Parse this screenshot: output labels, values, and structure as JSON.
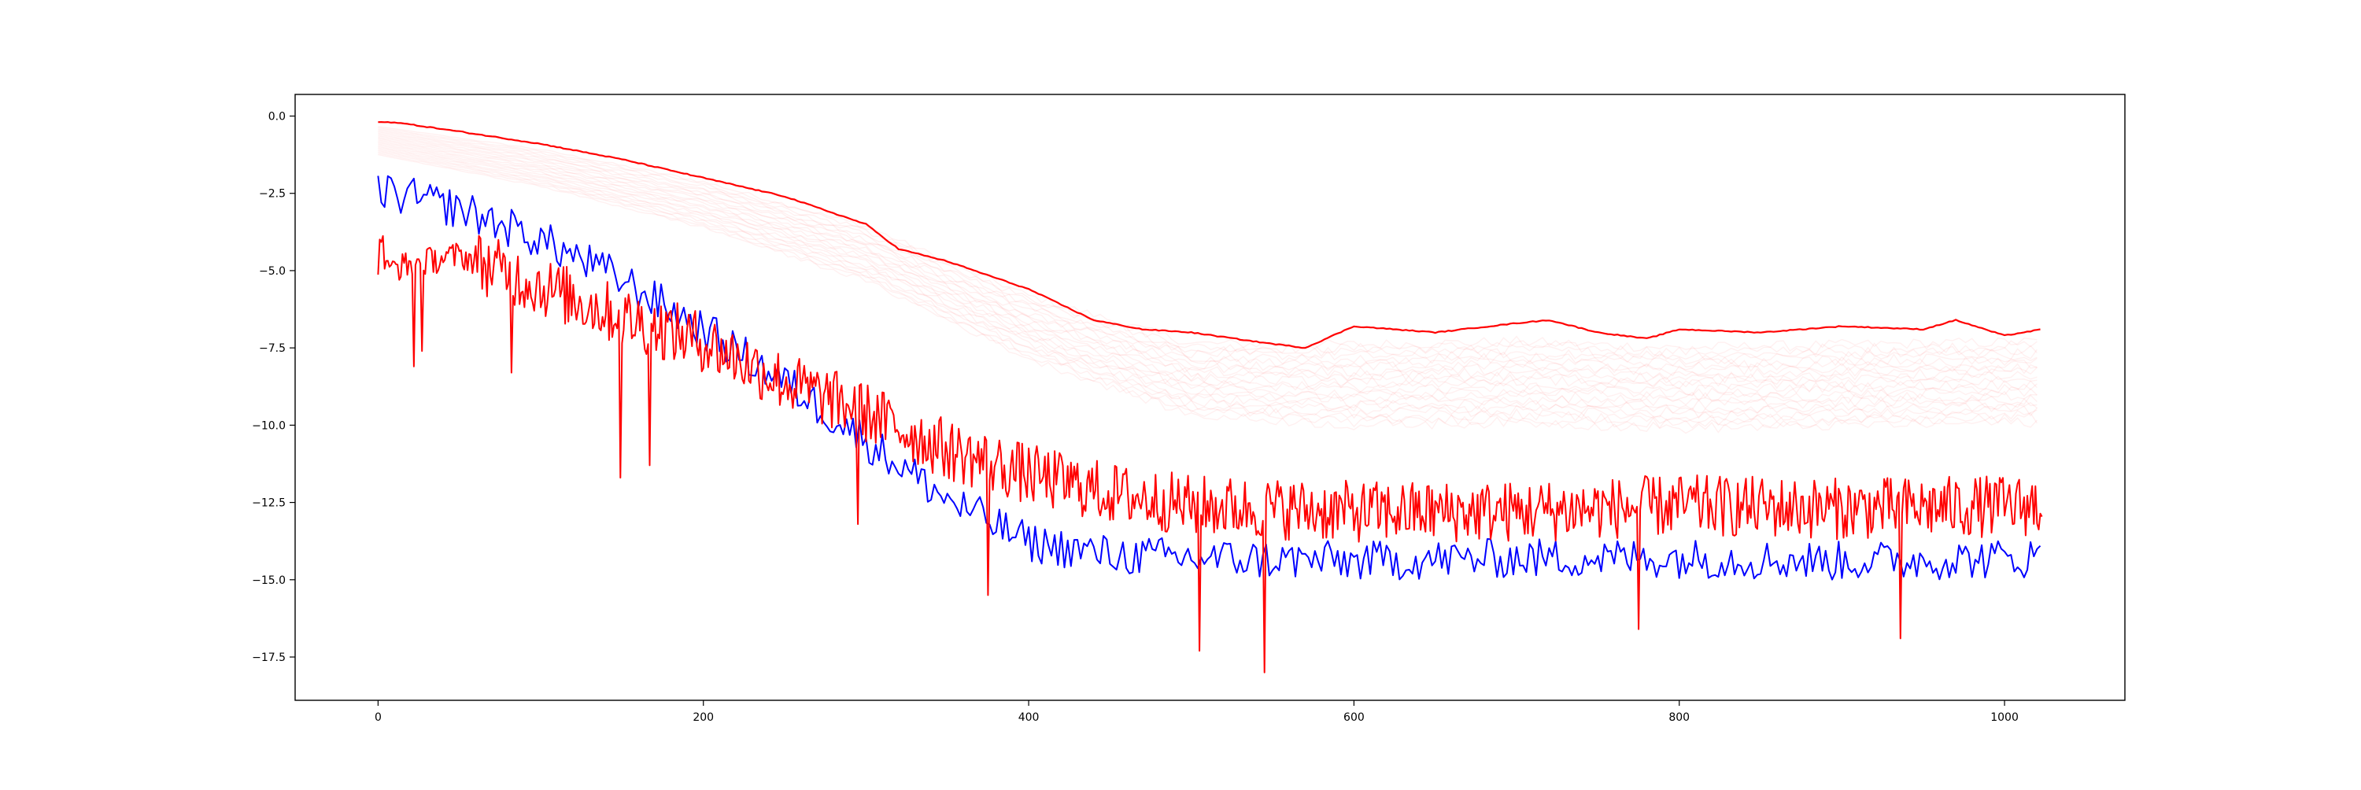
{
  "chart_data": {
    "type": "line",
    "title": "",
    "xlabel": "",
    "ylabel": "",
    "xlim": [
      -51,
      1074
    ],
    "ylim": [
      -18.9,
      0.7
    ],
    "grid": false,
    "legend": "none",
    "x_ticks": [
      0,
      200,
      400,
      600,
      800,
      1000
    ],
    "y_ticks": [
      0.0,
      -2.5,
      -5.0,
      -7.5,
      -10.0,
      -12.5,
      -15.0,
      -17.5
    ],
    "x_tick_labels": [
      "0",
      "200",
      "400",
      "600",
      "800",
      "1000"
    ],
    "y_tick_labels": [
      "0.0",
      "−2.5",
      "−5.0",
      "−7.5",
      "−10.0",
      "−12.5",
      "−15.0",
      "−17.5"
    ],
    "colors": {
      "red": "#ff0000",
      "blue": "#0000ff",
      "faint": "#ff0000"
    },
    "x_max": 1023,
    "series": [
      {
        "style": "faint-red-band",
        "description_in_values": "about 20 low-opacity red curves lying between the upper red envelope and about -10",
        "knots_x": [
          0,
          100,
          200,
          300,
          400,
          500,
          600,
          700,
          800,
          900,
          1023
        ],
        "knots_y": [
          -0.2,
          -0.9,
          -1.9,
          -3.3,
          -5.5,
          -7.0,
          -7.0,
          -6.9,
          -7.1,
          -7.0,
          -6.9
        ],
        "offset_range": [
          0.4,
          3.0
        ]
      },
      {
        "style": "smooth-red-upper",
        "knots_x": [
          0,
          10,
          50,
          100,
          150,
          200,
          250,
          300,
          320,
          350,
          400,
          440,
          470,
          500,
          540,
          570,
          600,
          650,
          700,
          720,
          750,
          780,
          800,
          850,
          900,
          950,
          970,
          1000,
          1023
        ],
        "knots_y": [
          -0.2,
          -0.2,
          -0.5,
          -0.9,
          -1.4,
          -2.0,
          -2.6,
          -3.5,
          -4.3,
          -4.7,
          -5.6,
          -6.6,
          -6.9,
          -7.0,
          -7.3,
          -7.5,
          -6.8,
          -7.0,
          -6.7,
          -6.6,
          -7.0,
          -7.2,
          -6.9,
          -7.0,
          -6.8,
          -6.9,
          -6.6,
          -7.1,
          -6.9
        ]
      },
      {
        "style": "noisy-blue",
        "knots_x": [
          0,
          50,
          100,
          150,
          200,
          250,
          300,
          350,
          400,
          450,
          500,
          600,
          700,
          800,
          900,
          1023
        ],
        "knots_y": [
          -2.4,
          -3.0,
          -4.0,
          -5.3,
          -6.9,
          -8.6,
          -10.5,
          -12.4,
          -13.8,
          -14.2,
          -14.3,
          -14.4,
          -14.3,
          -14.3,
          -14.4,
          -14.3
        ],
        "noise_amplitude": 0.65
      },
      {
        "style": "noisy-red",
        "knots_x": [
          0,
          50,
          100,
          150,
          200,
          250,
          300,
          350,
          400,
          450,
          500,
          600,
          700,
          800,
          900,
          1023
        ],
        "knots_y": [
          -5.0,
          -4.5,
          -5.5,
          -6.5,
          -7.3,
          -8.6,
          -9.6,
          -10.8,
          -11.6,
          -12.2,
          -12.6,
          -12.8,
          -12.8,
          -12.6,
          -12.7,
          -12.6
        ],
        "noise_amplitude": 1.0,
        "dips": [
          {
            "x": 22,
            "y": -8.1
          },
          {
            "x": 27,
            "y": -7.6
          },
          {
            "x": 82,
            "y": -8.3
          },
          {
            "x": 149,
            "y": -11.7
          },
          {
            "x": 167,
            "y": -11.3
          },
          {
            "x": 295,
            "y": -13.2
          },
          {
            "x": 375,
            "y": -15.5
          },
          {
            "x": 505,
            "y": -17.3
          },
          {
            "x": 545,
            "y": -18.0
          },
          {
            "x": 775,
            "y": -16.6
          },
          {
            "x": 936,
            "y": -16.9
          }
        ]
      }
    ]
  }
}
